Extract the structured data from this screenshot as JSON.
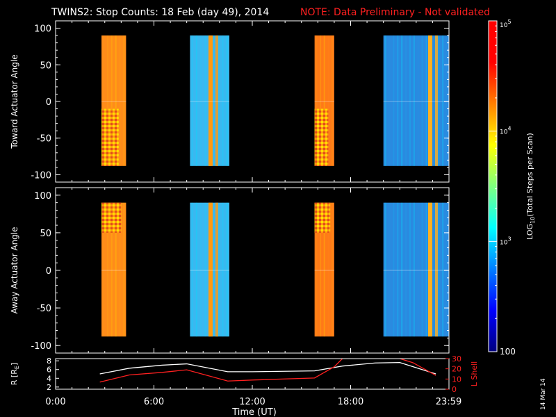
{
  "header": {
    "title": "TWINS2: Stop Counts: 18 Feb (day  49), 2014",
    "note": "NOTE: Data Preliminary - Not validated"
  },
  "side_date": "14 Mar 14",
  "colorbar": {
    "label": "LOG10(Total Steps per Scan)",
    "label_main": "LOG",
    "label_sub": "10",
    "label_rest": "(Total Steps per Scan)",
    "ticks": [
      {
        "base": "10",
        "exp": "5",
        "value": 100000
      },
      {
        "base": "10",
        "exp": "4",
        "value": 10000
      },
      {
        "base": "10",
        "exp": "3",
        "value": 1000
      },
      {
        "base": "100",
        "exp": "",
        "value": 100
      }
    ],
    "range": [
      100,
      100000
    ],
    "colors": [
      "#00007f",
      "#0000ff",
      "#007fff",
      "#00ffff",
      "#7fff7f",
      "#ffff00",
      "#ff7f00",
      "#ff0000",
      "#ff0000"
    ]
  },
  "x_axis": {
    "label": "Time (UT)",
    "ticks": [
      "0:00",
      "6:00",
      "12:00",
      "18:00",
      "23:59"
    ],
    "tick_hours": [
      0,
      6,
      12,
      18,
      23.98
    ],
    "range_hours": [
      0,
      24
    ]
  },
  "chart_data": [
    {
      "type": "heatmap",
      "name": "toward",
      "ylabel": "Toward Actuator Angle",
      "yticks": [
        "100",
        "50",
        "0",
        "-50",
        "-100"
      ],
      "ytick_values": [
        100,
        50,
        0,
        -50,
        -100
      ],
      "ylim": [
        -110,
        110
      ],
      "scans": [
        {
          "t0": 2.8,
          "t1": 4.3,
          "angle": [
            -88,
            90
          ],
          "level": "high",
          "color": "#ff8c1a",
          "checker_lower": true
        },
        {
          "t0": 8.2,
          "t1": 10.6,
          "angle": [
            -88,
            90
          ],
          "level": "medium",
          "color": "#3ab8f0",
          "edge_color": "#ff9a10"
        },
        {
          "t0": 15.8,
          "t1": 17.0,
          "angle": [
            -88,
            90
          ],
          "level": "high",
          "color": "#ff7a18",
          "checker_lower": true
        },
        {
          "t0": 20.0,
          "t1": 24.0,
          "angle": [
            -88,
            90
          ],
          "level": "low",
          "color": "#2a8ae0",
          "edge_color": "#ffb020"
        }
      ]
    },
    {
      "type": "heatmap",
      "name": "away",
      "ylabel": "Away Actuator Angle",
      "yticks": [
        "100",
        "50",
        "0",
        "-50",
        "-100"
      ],
      "ytick_values": [
        100,
        50,
        0,
        -50,
        -100
      ],
      "ylim": [
        -110,
        110
      ],
      "scans": [
        {
          "t0": 2.8,
          "t1": 4.3,
          "angle": [
            -88,
            90
          ],
          "level": "high",
          "color": "#ff8c1a",
          "checker_upper": true
        },
        {
          "t0": 8.2,
          "t1": 10.6,
          "angle": [
            -88,
            90
          ],
          "level": "medium",
          "color": "#3ab8f0",
          "edge_color": "#ff9a10"
        },
        {
          "t0": 15.8,
          "t1": 17.0,
          "angle": [
            -88,
            90
          ],
          "level": "high",
          "color": "#ff7a18",
          "checker_upper": true
        },
        {
          "t0": 20.0,
          "t1": 24.0,
          "angle": [
            -88,
            90
          ],
          "level": "low",
          "color": "#2a8ae0",
          "edge_color": "#ffb020"
        }
      ]
    },
    {
      "type": "line",
      "name": "orbit",
      "ylabel_left": "R [RE]",
      "ylabel_left_main": "R [R",
      "ylabel_left_sub": "E",
      "ylabel_left_end": "]",
      "ylabel_right": "L Shell",
      "yticks_left": [
        "2",
        "4",
        "6",
        "8"
      ],
      "ytick_values_left": [
        2,
        4,
        6,
        8
      ],
      "ylim_left": [
        1.5,
        8.5
      ],
      "yticks_right": [
        "0",
        "10",
        "20",
        "30"
      ],
      "ytick_values_right": [
        0,
        10,
        20,
        30
      ],
      "ylim_right": [
        0,
        30
      ],
      "series": [
        {
          "name": "R",
          "axis": "left",
          "color": "#ffffff",
          "x": [
            2.7,
            4.5,
            6.5,
            8.0,
            10.5,
            12.0,
            15.8,
            17.5,
            19.5,
            21.0,
            23.2
          ],
          "y": [
            5.0,
            6.3,
            7.0,
            7.3,
            5.5,
            5.5,
            5.7,
            6.8,
            7.5,
            7.6,
            5.0
          ]
        },
        {
          "name": "L Shell",
          "axis": "right",
          "color": "#ff2020",
          "x": [
            2.7,
            4.5,
            6.5,
            8.0,
            10.5,
            12.0,
            15.8,
            17.0,
            17.5
          ],
          "y": [
            7.0,
            14.0,
            16.5,
            19.0,
            8.0,
            9.0,
            11.0,
            22.0,
            30.0
          ],
          "x2": [
            21.0,
            21.8,
            23.2
          ],
          "y2": [
            30.0,
            26.0,
            13.5
          ]
        }
      ]
    }
  ]
}
